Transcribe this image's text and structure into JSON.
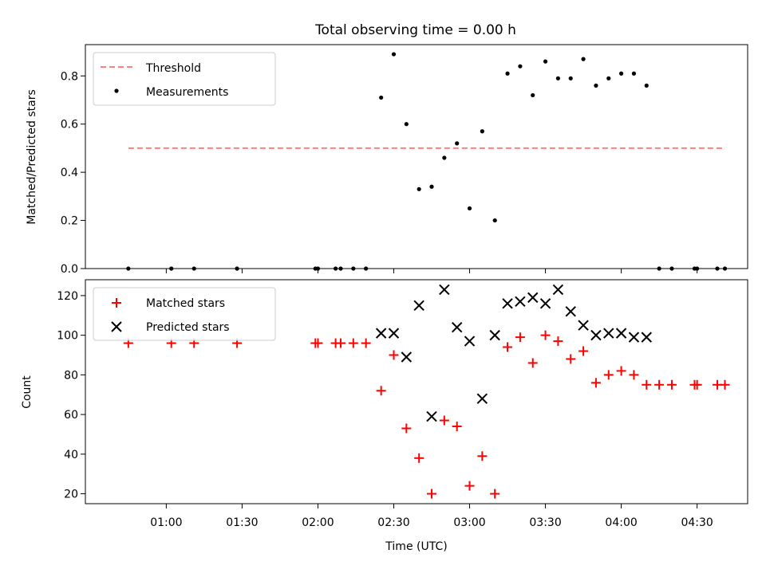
{
  "chart_data": [
    {
      "type": "scatter",
      "title": "Total observing time = 0.00 h",
      "ylabel": "Matched/Predicted stars",
      "xlabel": "",
      "xlim": [
        "00:28",
        "04:50"
      ],
      "ylim": [
        0,
        0.93
      ],
      "y_ticks": [
        0.0,
        0.2,
        0.4,
        0.6,
        0.8
      ],
      "y_tick_labels": [
        "0.0",
        "0.2",
        "0.4",
        "0.6",
        "0.8"
      ],
      "grid": false,
      "legend": "top-left",
      "threshold": {
        "name": "Threshold",
        "color": "#ff7f7f",
        "x": [
          "00:45",
          "04:40"
        ],
        "y": 0.5
      },
      "series": [
        {
          "name": "Measurements",
          "color": "#000000",
          "points": [
            [
              "00:45",
              0.0
            ],
            [
              "01:02",
              0.0
            ],
            [
              "01:11",
              0.0
            ],
            [
              "01:28",
              0.0
            ],
            [
              "01:59",
              0.0
            ],
            [
              "02:00",
              0.0
            ],
            [
              "02:07",
              0.0
            ],
            [
              "02:09",
              0.0
            ],
            [
              "02:14",
              0.0
            ],
            [
              "02:19",
              0.0
            ],
            [
              "02:25",
              0.71
            ],
            [
              "02:30",
              0.89
            ],
            [
              "02:35",
              0.6
            ],
            [
              "02:40",
              0.33
            ],
            [
              "02:45",
              0.34
            ],
            [
              "02:50",
              0.46
            ],
            [
              "02:55",
              0.52
            ],
            [
              "03:00",
              0.25
            ],
            [
              "03:05",
              0.57
            ],
            [
              "03:10",
              0.2
            ],
            [
              "03:15",
              0.81
            ],
            [
              "03:20",
              0.84
            ],
            [
              "03:25",
              0.72
            ],
            [
              "03:30",
              0.86
            ],
            [
              "03:35",
              0.79
            ],
            [
              "03:40",
              0.79
            ],
            [
              "03:45",
              0.87
            ],
            [
              "03:50",
              0.76
            ],
            [
              "03:55",
              0.79
            ],
            [
              "04:00",
              0.81
            ],
            [
              "04:05",
              0.81
            ],
            [
              "04:10",
              0.76
            ],
            [
              "04:15",
              0.0
            ],
            [
              "04:20",
              0.0
            ],
            [
              "04:29",
              0.0
            ],
            [
              "04:30",
              0.0
            ],
            [
              "04:38",
              0.0
            ],
            [
              "04:41",
              0.0
            ]
          ]
        }
      ]
    },
    {
      "type": "scatter",
      "title": "",
      "ylabel": "Count",
      "xlabel": "Time (UTC)",
      "xlim": [
        "00:28",
        "04:50"
      ],
      "ylim": [
        15,
        128
      ],
      "y_ticks": [
        20,
        40,
        60,
        80,
        100,
        120
      ],
      "y_tick_labels": [
        "20",
        "40",
        "60",
        "80",
        "100",
        "120"
      ],
      "x_ticks": [
        "01:00",
        "01:30",
        "02:00",
        "02:30",
        "03:00",
        "03:30",
        "04:00",
        "04:30"
      ],
      "x_tick_labels": [
        "01:00",
        "01:30",
        "02:00",
        "02:30",
        "03:00",
        "03:30",
        "04:00",
        "04:30"
      ],
      "grid": false,
      "legend": "top-left",
      "series": [
        {
          "name": "Matched stars",
          "marker": "plus",
          "color": "#ff0000",
          "points": [
            [
              "00:45",
              96
            ],
            [
              "01:02",
              96
            ],
            [
              "01:11",
              96
            ],
            [
              "01:28",
              96
            ],
            [
              "01:59",
              96
            ],
            [
              "02:00",
              96
            ],
            [
              "02:07",
              96
            ],
            [
              "02:09",
              96
            ],
            [
              "02:14",
              96
            ],
            [
              "02:19",
              96
            ],
            [
              "02:25",
              72
            ],
            [
              "02:30",
              90
            ],
            [
              "02:35",
              53
            ],
            [
              "02:40",
              38
            ],
            [
              "02:45",
              20
            ],
            [
              "02:50",
              57
            ],
            [
              "02:55",
              54
            ],
            [
              "03:00",
              24
            ],
            [
              "03:05",
              39
            ],
            [
              "03:10",
              20
            ],
            [
              "03:15",
              94
            ],
            [
              "03:20",
              99
            ],
            [
              "03:25",
              86
            ],
            [
              "03:30",
              100
            ],
            [
              "03:35",
              97
            ],
            [
              "03:40",
              88
            ],
            [
              "03:45",
              92
            ],
            [
              "03:50",
              76
            ],
            [
              "03:55",
              80
            ],
            [
              "04:00",
              82
            ],
            [
              "04:05",
              80
            ],
            [
              "04:10",
              75
            ],
            [
              "04:15",
              75
            ],
            [
              "04:20",
              75
            ],
            [
              "04:29",
              75
            ],
            [
              "04:30",
              75
            ],
            [
              "04:38",
              75
            ],
            [
              "04:41",
              75
            ]
          ]
        },
        {
          "name": "Predicted stars",
          "marker": "x",
          "color": "#000000",
          "points": [
            [
              "02:25",
              101
            ],
            [
              "02:30",
              101
            ],
            [
              "02:35",
              89
            ],
            [
              "02:40",
              115
            ],
            [
              "02:45",
              59
            ],
            [
              "02:50",
              123
            ],
            [
              "02:55",
              104
            ],
            [
              "03:00",
              97
            ],
            [
              "03:05",
              68
            ],
            [
              "03:10",
              100
            ],
            [
              "03:15",
              116
            ],
            [
              "03:20",
              117
            ],
            [
              "03:25",
              119
            ],
            [
              "03:30",
              116
            ],
            [
              "03:35",
              123
            ],
            [
              "03:40",
              112
            ],
            [
              "03:45",
              105
            ],
            [
              "03:50",
              100
            ],
            [
              "03:55",
              101
            ],
            [
              "04:00",
              101
            ],
            [
              "04:05",
              99
            ],
            [
              "04:10",
              99
            ]
          ]
        }
      ]
    }
  ]
}
